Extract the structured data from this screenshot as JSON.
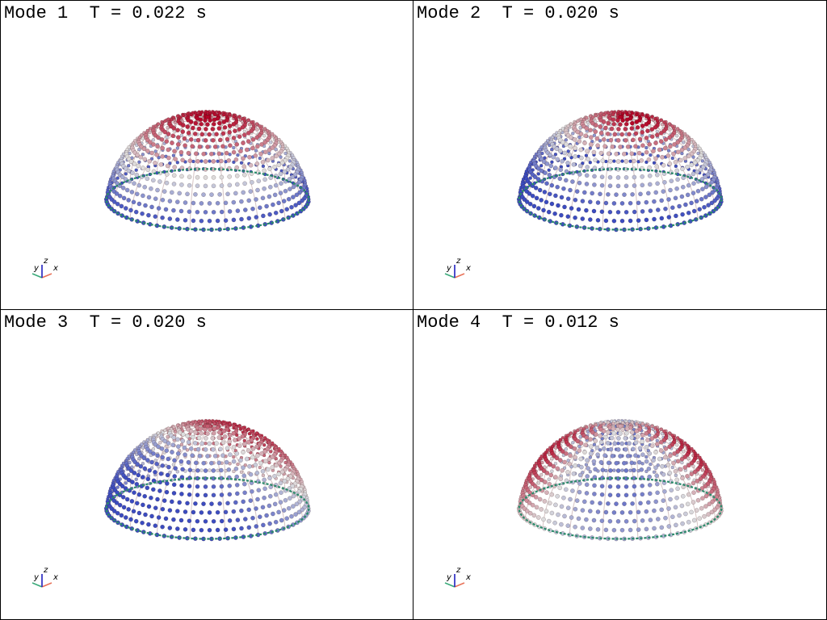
{
  "viewports": [
    {
      "mode_label": "Mode 1",
      "period_label": "T = 0.022 s",
      "pattern": "cap",
      "axes": {
        "x": "x",
        "y": "y",
        "z": "z"
      }
    },
    {
      "mode_label": "Mode 2",
      "period_label": "T = 0.020 s",
      "pattern": "rim",
      "axes": {
        "x": "x",
        "y": "y",
        "z": "z"
      }
    },
    {
      "mode_label": "Mode 3",
      "period_label": "T = 0.020 s",
      "pattern": "tilt",
      "axes": {
        "x": "x",
        "y": "y",
        "z": "z"
      }
    },
    {
      "mode_label": "Mode 4",
      "period_label": "T = 0.012 s",
      "pattern": "lobes",
      "axes": {
        "x": "x",
        "y": "y",
        "z": "z"
      }
    }
  ],
  "colors": {
    "positive": "#b40426",
    "neutral": "#dddddd",
    "negative": "#3b4cc0",
    "support": "#2a8a6a",
    "axis_x": "#e8735a",
    "axis_y": "#3aaa7a",
    "axis_z": "#2020c0"
  }
}
